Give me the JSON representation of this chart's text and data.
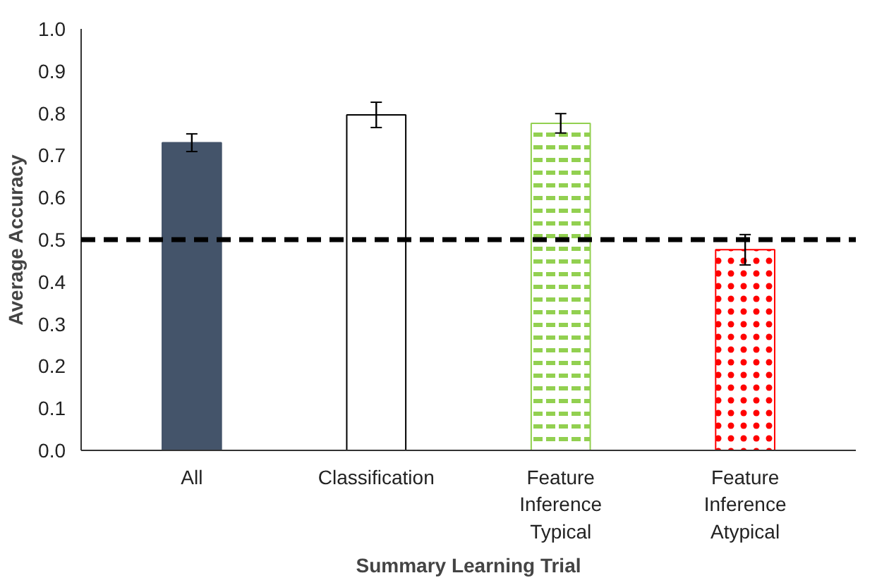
{
  "chart_data": {
    "type": "bar",
    "xlabel": "Summary Learning Trial",
    "ylabel": "Average Accuracy",
    "categories": [
      "All",
      "Classification",
      "Feature Inference Typical",
      "Feature Inference Atypical"
    ],
    "values": [
      0.73,
      0.796,
      0.776,
      0.476
    ],
    "errors": [
      0.021,
      0.03,
      0.023,
      0.036
    ],
    "colors": [
      "#44546a",
      "#ffffff",
      "#92d050",
      "#ff0000"
    ],
    "ylim": [
      0,
      1
    ],
    "yticks": [
      {
        "value": 0,
        "label": "0.0"
      },
      {
        "value": 0.1,
        "label": "0.1"
      },
      {
        "value": 0.2,
        "label": "0.2"
      },
      {
        "value": 0.3,
        "label": "0.3"
      },
      {
        "value": 0.4,
        "label": "0.4"
      },
      {
        "value": 0.5,
        "label": "0.5"
      },
      {
        "value": 0.6,
        "label": "0.6"
      },
      {
        "value": 0.7,
        "label": "0.7"
      },
      {
        "value": 0.8,
        "label": "0.8"
      },
      {
        "value": 0.9,
        "label": "0.9"
      },
      {
        "value": 1,
        "label": "1.0"
      }
    ],
    "ref_lines": [
      {
        "axis": "y",
        "value": 0.5,
        "label": null,
        "color": "#000000",
        "line_style": "dashed"
      }
    ],
    "grid": false
  }
}
